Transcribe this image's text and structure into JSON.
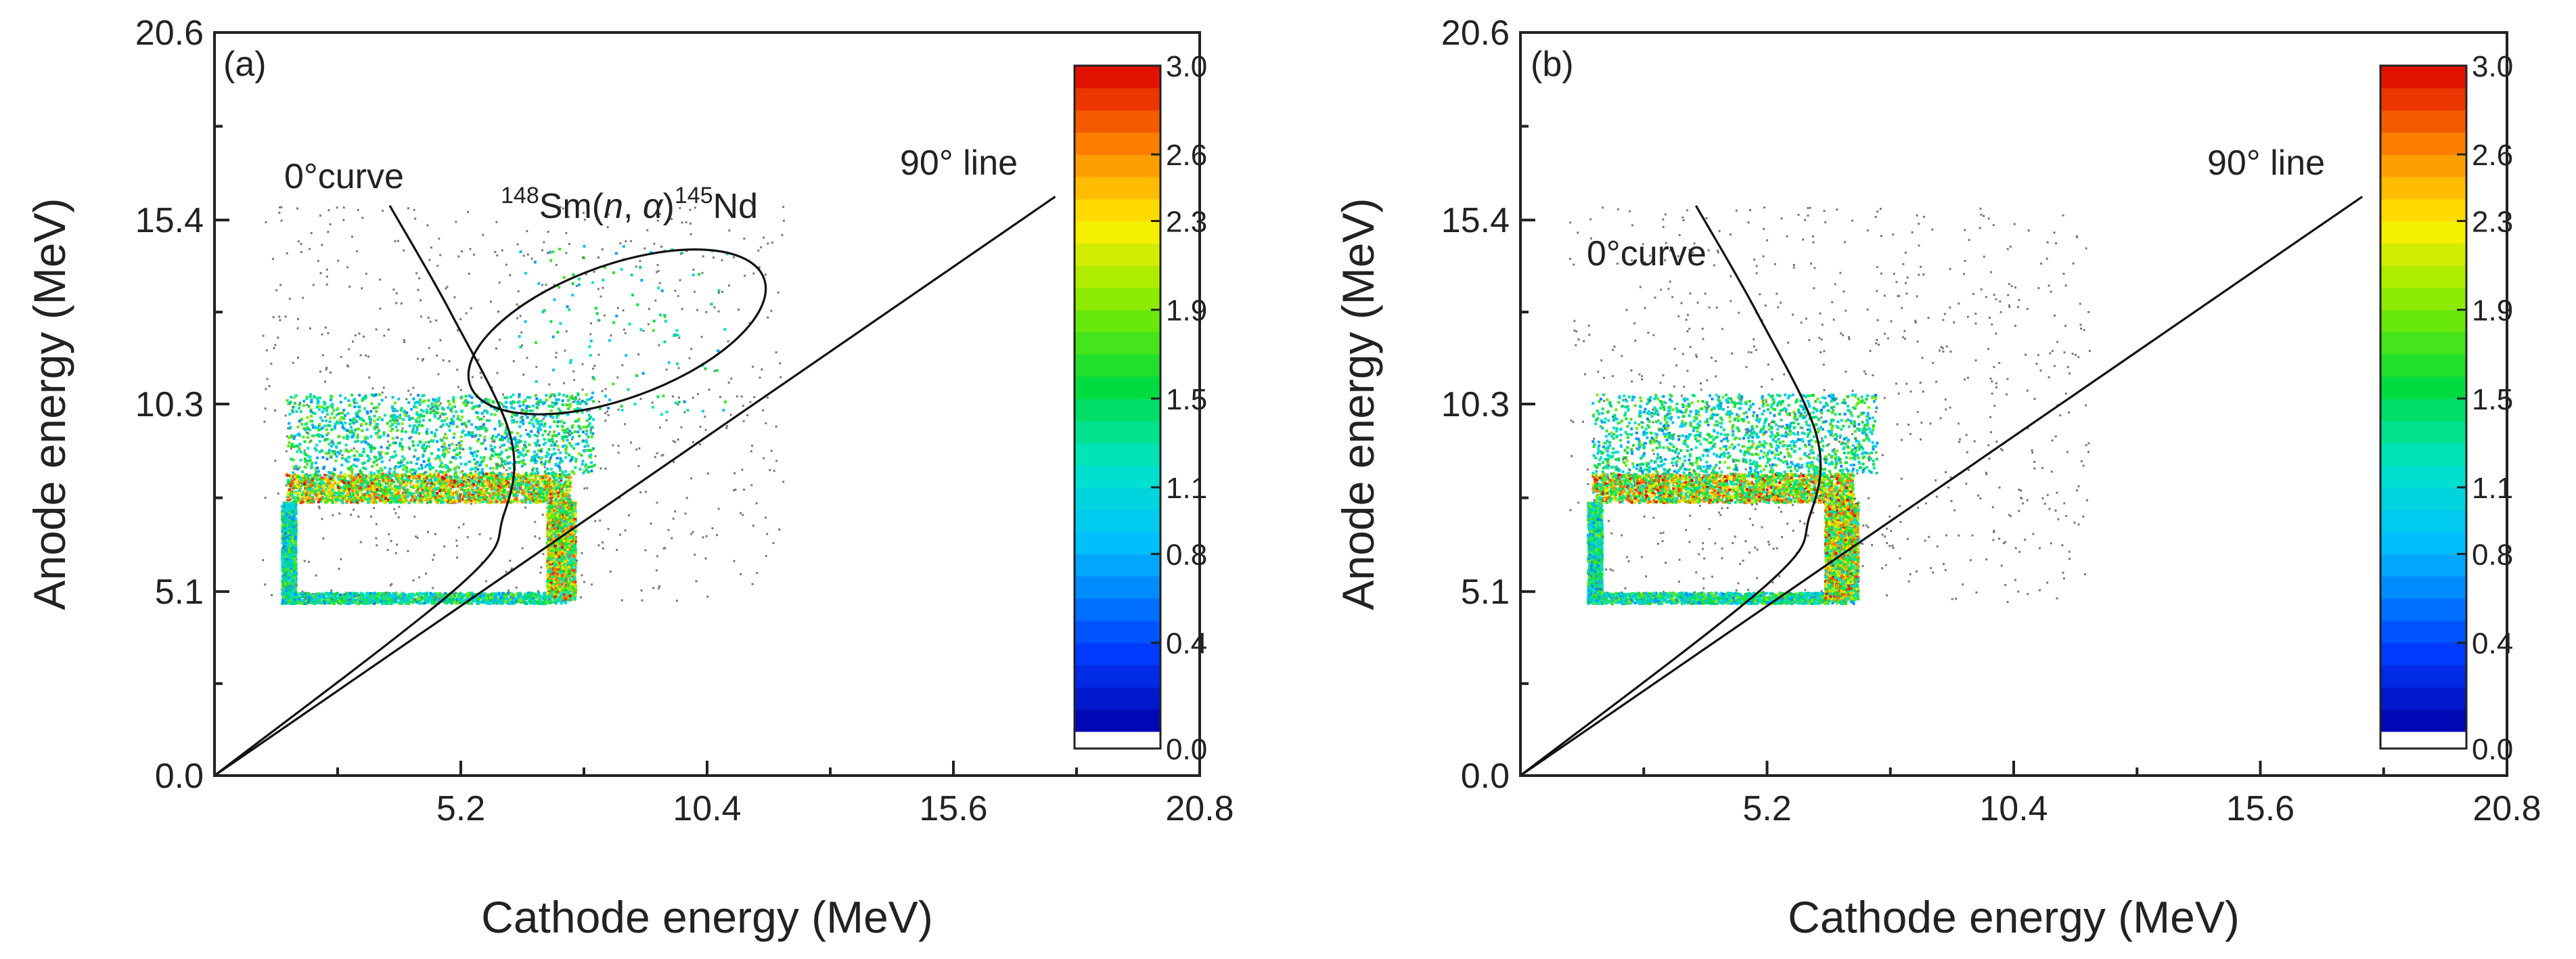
{
  "chart_data": [
    {
      "type": "scatter",
      "panel_label": "(a)",
      "xlabel": "Cathode energy (MeV)",
      "ylabel": "Anode energy (MeV)",
      "xlim": [
        0,
        20.8
      ],
      "ylim": [
        0,
        20.6
      ],
      "x_ticks": [
        "5.2",
        "10.4",
        "15.6",
        "20.8"
      ],
      "y_ticks": [
        "0.0",
        "5.1",
        "10.3",
        "15.4",
        "20.6"
      ],
      "annotations": {
        "zero_curve": "0°curve",
        "ninety_line": "90° line",
        "reaction": {
          "target_mass": "148",
          "target": "Sm(",
          "projectile": "n",
          "sep": ", ",
          "ejectile": "α",
          "close": ")",
          "product_mass": "145",
          "product": "Nd"
        }
      },
      "reaction_ellipse": {
        "center": [
          8.5,
          12.3
        ],
        "rx": 3.3,
        "ry": 1.85,
        "angle_deg": -20
      },
      "zero_curve": [
        [
          3.7,
          15.8
        ],
        [
          5.0,
          12.8
        ],
        [
          6.25,
          9.4
        ],
        [
          6.1,
          7.2
        ],
        [
          5.2,
          5.3
        ],
        [
          0,
          0
        ]
      ],
      "ninety_line": [
        [
          0,
          0
        ],
        [
          17.75,
          16.05
        ]
      ],
      "colorbar": {
        "min": 0.0,
        "max": 3.0,
        "ticks": [
          "0.0",
          "0.4",
          "0.8",
          "1.1",
          "1.5",
          "1.9",
          "2.3",
          "2.6",
          "3.0"
        ]
      },
      "density_regions": [
        {
          "name": "anode plateau",
          "x": [
            1.5,
            7.5
          ],
          "y": [
            7.6,
            8.4
          ],
          "density": "high"
        },
        {
          "name": "upper band",
          "x": [
            1.5,
            8.0
          ],
          "y": [
            8.4,
            10.6
          ],
          "density": "medium"
        },
        {
          "name": "left edge",
          "x": [
            1.4,
            1.7
          ],
          "y": [
            4.8,
            7.6
          ],
          "density": "medium"
        },
        {
          "name": "bottom edge",
          "x": [
            1.5,
            7.4
          ],
          "y": [
            4.8,
            5.1
          ],
          "density": "medium"
        },
        {
          "name": "cathode column",
          "x": [
            7.0,
            7.6
          ],
          "y": [
            4.9,
            7.6
          ],
          "density": "high"
        },
        {
          "name": "reaction events",
          "x": [
            6.2,
            10.8
          ],
          "y": [
            10.0,
            14.8
          ],
          "density": "low"
        }
      ]
    },
    {
      "type": "scatter",
      "panel_label": "(b)",
      "xlabel": "Cathode energy (MeV)",
      "ylabel": "Anode energy (MeV)",
      "xlim": [
        0,
        20.8
      ],
      "ylim": [
        0,
        20.6
      ],
      "x_ticks": [
        "5.2",
        "10.4",
        "15.6",
        "20.8"
      ],
      "y_ticks": [
        "0.0",
        "5.1",
        "10.3",
        "15.4",
        "20.6"
      ],
      "annotations": {
        "zero_curve": "0°curve",
        "ninety_line": "90° line"
      },
      "zero_curve": [
        [
          3.7,
          15.8
        ],
        [
          5.0,
          12.8
        ],
        [
          6.25,
          9.4
        ],
        [
          6.1,
          7.2
        ],
        [
          5.2,
          5.3
        ],
        [
          0,
          0
        ]
      ],
      "ninety_line": [
        [
          0,
          0
        ],
        [
          17.75,
          16.05
        ]
      ],
      "colorbar": {
        "min": 0.0,
        "max": 3.0,
        "ticks": [
          "0.0",
          "0.4",
          "0.8",
          "1.1",
          "1.5",
          "1.9",
          "2.3",
          "2.6",
          "3.0"
        ]
      },
      "density_regions": [
        {
          "name": "anode plateau",
          "x": [
            1.5,
            7.0
          ],
          "y": [
            7.6,
            8.4
          ],
          "density": "high"
        },
        {
          "name": "upper band",
          "x": [
            1.5,
            7.5
          ],
          "y": [
            8.4,
            10.6
          ],
          "density": "medium"
        },
        {
          "name": "left edge",
          "x": [
            1.4,
            1.7
          ],
          "y": [
            4.8,
            7.6
          ],
          "density": "medium"
        },
        {
          "name": "bottom edge",
          "x": [
            1.5,
            7.0
          ],
          "y": [
            4.8,
            5.1
          ],
          "density": "medium"
        },
        {
          "name": "cathode column",
          "x": [
            6.4,
            7.1
          ],
          "y": [
            4.9,
            7.6
          ],
          "density": "high"
        }
      ]
    }
  ]
}
